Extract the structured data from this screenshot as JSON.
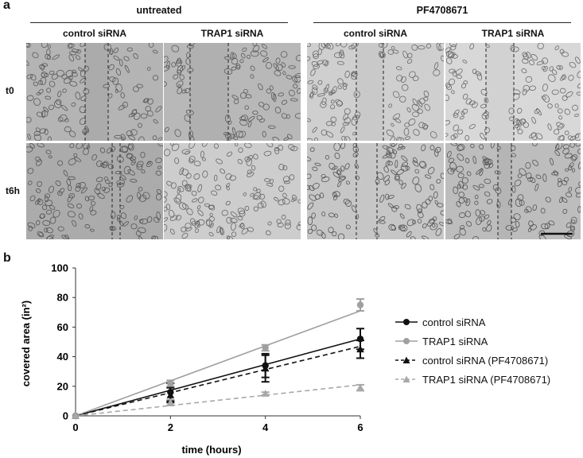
{
  "panel_a": {
    "letter": "a",
    "groups": [
      {
        "title": "untreated",
        "columns": [
          "control siRNA",
          "TRAP1 siRNA"
        ]
      },
      {
        "title": "PF4708671",
        "columns": [
          "control siRNA",
          "TRAP1 siRNA"
        ]
      }
    ],
    "rows": [
      "t0",
      "t6h"
    ],
    "image_colors": {
      "dark": "#b2b2b2",
      "light": "#d4d4d4",
      "gap_dark": "#a9a9a9",
      "gap_light": "#cfcfcf"
    }
  },
  "panel_b": {
    "letter": "b"
  },
  "chart_data": {
    "type": "line",
    "xlabel": "time (hours)",
    "ylabel": "covered area (in²)",
    "xlim": [
      0,
      6
    ],
    "ylim": [
      0,
      100
    ],
    "xticks": [
      0,
      2,
      4,
      6
    ],
    "yticks": [
      0,
      20,
      40,
      60,
      80,
      100
    ],
    "grid": false,
    "legend_position": "right",
    "series": [
      {
        "name": "control siRNA",
        "x": [
          0,
          2,
          4,
          6
        ],
        "y": [
          0,
          16,
          34,
          52
        ],
        "err": [
          0,
          6,
          8,
          7
        ],
        "fit": [
          0,
          52
        ],
        "color": "#111111",
        "marker": "circle",
        "dashed": false
      },
      {
        "name": "TRAP1 siRNA",
        "x": [
          0,
          2,
          4,
          6
        ],
        "y": [
          0,
          22,
          46,
          75
        ],
        "err": [
          0,
          2,
          2,
          4
        ],
        "fit": [
          0,
          71
        ],
        "color": "#a0a0a0",
        "marker": "circle",
        "dashed": false
      },
      {
        "name": "control siRNA (PF4708671)",
        "x": [
          0,
          2,
          4,
          6
        ],
        "y": [
          0,
          14,
          32,
          45
        ],
        "err": [
          0,
          5,
          9,
          6
        ],
        "fit": [
          0,
          47
        ],
        "color": "#111111",
        "marker": "triangle",
        "dashed": true
      },
      {
        "name": "TRAP1 siRNA (PF4708671)",
        "x": [
          0,
          2,
          4,
          6
        ],
        "y": [
          0,
          9,
          15,
          19
        ],
        "err": [
          0,
          2,
          1,
          2
        ],
        "fit": [
          0,
          21
        ],
        "color": "#a8a8a8",
        "marker": "triangle",
        "dashed": true
      }
    ]
  }
}
